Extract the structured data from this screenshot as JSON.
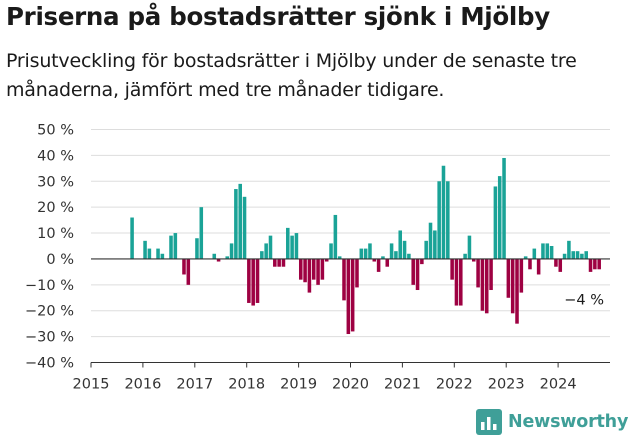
{
  "header": {
    "title": "Priserna på bostadsrätter sjönk i Mjölby",
    "subtitle": "Prisutveckling för bostadsrätter i Mjölby under de senaste tre månaderna, jämfört med tre månader tidigare."
  },
  "brand": {
    "name": "Newsworthy",
    "icon": "newsworthy-chart-icon",
    "color": "#3f9f98"
  },
  "colors": {
    "positive": "#1aa397",
    "negative": "#9e0142",
    "grid": "#dddddd",
    "zero_line": "#333333"
  },
  "chart_data": {
    "type": "bar",
    "x_unit": "month",
    "y_unit": "%",
    "ylim": [
      -40,
      50
    ],
    "yticks": [
      -40,
      -30,
      -20,
      -10,
      0,
      10,
      20,
      30,
      40,
      50
    ],
    "ytick_labels": [
      "−40 %",
      "−30 %",
      "−20 %",
      "−10 %",
      "0 %",
      "10 %",
      "20 %",
      "30 %",
      "40 %",
      "50 %"
    ],
    "xticks": [
      "2015",
      "2016",
      "2017",
      "2018",
      "2019",
      "2020",
      "2021",
      "2022",
      "2023",
      "2024"
    ],
    "xlim": [
      "2015-01",
      "2025-01"
    ],
    "grid": "horizontal",
    "annotation": {
      "text": "−4 %",
      "x": "2024-10",
      "y": -4
    },
    "series": [
      {
        "x": [
          "2015-10",
          "2016-01",
          "2016-02",
          "2016-04",
          "2016-05",
          "2016-07",
          "2016-08",
          "2016-10",
          "2016-11",
          "2017-01",
          "2017-02",
          "2017-05",
          "2017-06",
          "2017-08",
          "2017-09",
          "2017-10",
          "2017-11",
          "2017-12",
          "2018-01",
          "2018-02",
          "2018-03",
          "2018-04",
          "2018-05",
          "2018-06",
          "2018-07",
          "2018-08",
          "2018-09",
          "2018-10",
          "2018-11",
          "2018-12",
          "2019-01",
          "2019-02",
          "2019-03",
          "2019-04",
          "2019-05",
          "2019-06",
          "2019-07",
          "2019-08",
          "2019-09",
          "2019-10",
          "2019-11",
          "2019-12",
          "2020-01",
          "2020-02",
          "2020-03",
          "2020-04",
          "2020-05",
          "2020-06",
          "2020-07",
          "2020-08",
          "2020-09",
          "2020-10",
          "2020-11",
          "2020-12",
          "2021-01",
          "2021-02",
          "2021-03",
          "2021-04",
          "2021-05",
          "2021-06",
          "2021-07",
          "2021-08",
          "2021-09",
          "2021-10",
          "2021-11",
          "2021-12",
          "2022-01",
          "2022-02",
          "2022-03",
          "2022-04",
          "2022-05",
          "2022-06",
          "2022-07",
          "2022-08",
          "2022-09",
          "2022-10",
          "2022-11",
          "2022-12",
          "2023-01",
          "2023-02",
          "2023-03",
          "2023-04",
          "2023-05",
          "2023-06",
          "2023-07",
          "2023-08",
          "2023-09",
          "2023-10",
          "2023-11",
          "2023-12",
          "2024-01",
          "2024-02",
          "2024-03",
          "2024-04",
          "2024-05",
          "2024-06",
          "2024-07",
          "2024-08",
          "2024-09",
          "2024-10"
        ],
        "values": [
          16,
          7,
          4,
          4,
          2,
          9,
          10,
          -6,
          -10,
          8,
          20,
          2,
          -1,
          1,
          6,
          27,
          29,
          24,
          -17,
          -18,
          -17,
          3,
          6,
          9,
          -3,
          -3,
          -3,
          12,
          9,
          10,
          -8,
          -9,
          -13,
          -8,
          -10,
          -8,
          -1,
          6,
          17,
          1,
          -16,
          -29,
          -28,
          -11,
          4,
          4,
          6,
          -1,
          -5,
          1,
          -3,
          6,
          3,
          11,
          7,
          2,
          -10,
          -12,
          -2,
          7,
          14,
          11,
          30,
          36,
          30,
          -8,
          -18,
          -18,
          2,
          9,
          -1,
          -11,
          -20,
          -21,
          -12,
          28,
          32,
          39,
          -15,
          -21,
          -25,
          -13,
          1,
          -4,
          4,
          -6,
          6,
          6,
          5,
          -3,
          -5,
          2,
          7,
          3,
          3,
          2,
          3,
          -5,
          -4,
          -4
        ]
      }
    ]
  }
}
